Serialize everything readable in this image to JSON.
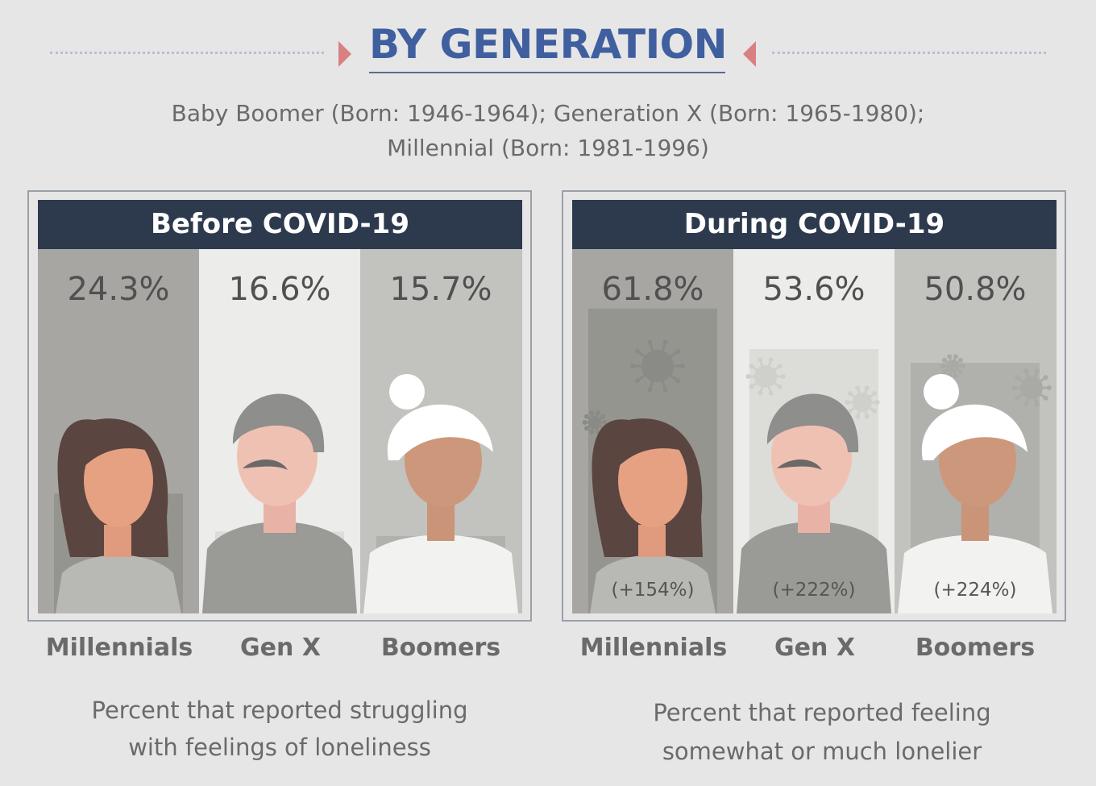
{
  "header": {
    "title": "BY GENERATION",
    "legend_line1": "Baby Boomer (Born: 1946-1964); Generation X (Born: 1965-1980);",
    "legend_line2": "Millennial (Born: 1981-1996)"
  },
  "colors": {
    "title": "#3f5f9f",
    "panel_header": "#2d3a4e",
    "accent_triangle": "#d98080",
    "background": "#e6e6e6"
  },
  "chart_data": [
    {
      "type": "bar",
      "title": "Before COVID-19",
      "categories": [
        "Millennials",
        "Gen X",
        "Boomers"
      ],
      "values": [
        24.3,
        16.6,
        15.7
      ],
      "value_labels": [
        "24.3%",
        "16.6%",
        "15.7%"
      ],
      "caption": "Percent that reported struggling with feelings of loneliness",
      "caption_line1": "Percent that reported struggling",
      "caption_line2": "with feelings of loneliness",
      "ylim": [
        0,
        100
      ]
    },
    {
      "type": "bar",
      "title": "During COVID-19",
      "categories": [
        "Millennials",
        "Gen X",
        "Boomers"
      ],
      "values": [
        61.8,
        53.6,
        50.8
      ],
      "value_labels": [
        "61.8%",
        "53.6%",
        "50.8%"
      ],
      "change_labels": [
        "(+154%)",
        "(+222%)",
        "(+224%)"
      ],
      "caption": "Percent that reported feeling somewhat or much lonelier",
      "caption_line1": "Percent that reported feeling",
      "caption_line2": "somewhat or much lonelier",
      "ylim": [
        0,
        100
      ]
    }
  ]
}
